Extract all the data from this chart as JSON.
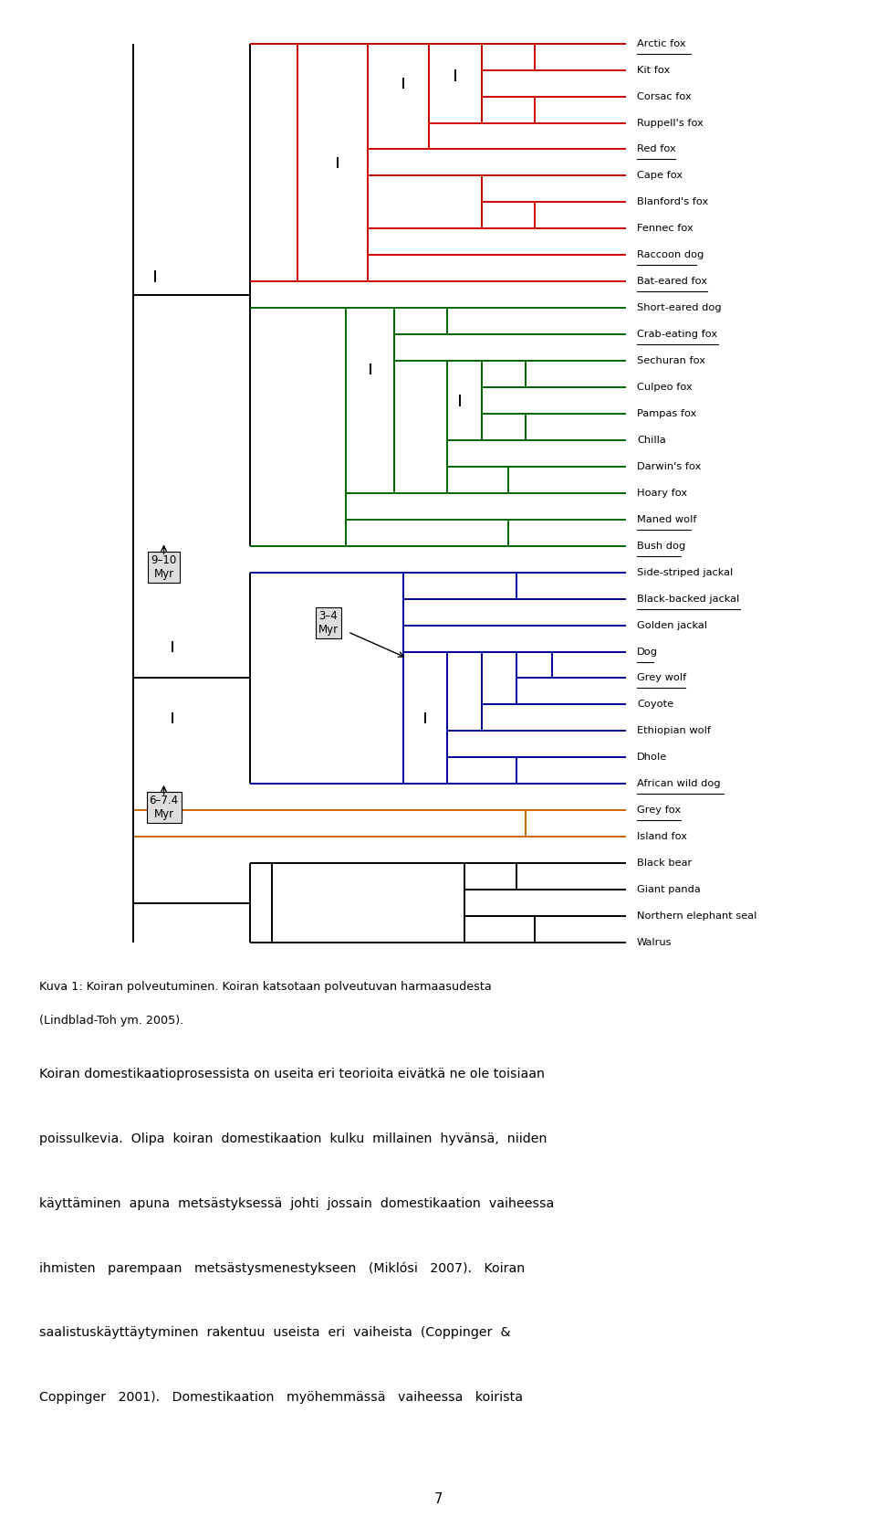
{
  "fig_width": 9.6,
  "fig_height": 16.61,
  "bg_color": "#ffffff",
  "taxa": [
    "Arctic fox",
    "Kit fox",
    "Corsac fox",
    "Ruppell's fox",
    "Red fox",
    "Cape fox",
    "Blanford's fox",
    "Fennec fox",
    "Raccoon dog",
    "Bat-eared fox",
    "Short-eared dog",
    "Crab-eating fox",
    "Sechuran fox",
    "Culpeo fox",
    "Pampas fox",
    "Chilla",
    "Darwin's fox",
    "Hoary fox",
    "Maned wolf",
    "Bush dog",
    "Side-striped jackal",
    "Black-backed jackal",
    "Golden jackal",
    "Dog",
    "Grey wolf",
    "Coyote",
    "Ethiopian wolf",
    "Dhole",
    "African wild dog",
    "Grey fox",
    "Island fox",
    "Black bear",
    "Giant panda",
    "Northern elephant seal",
    "Walrus"
  ],
  "underlined": [
    "Arctic fox",
    "Red fox",
    "Raccoon dog",
    "Bat-eared fox",
    "Crab-eating fox",
    "Maned wolf",
    "Bush dog",
    "Black-backed jackal",
    "Dog",
    "Grey wolf",
    "African wild dog",
    "Grey fox"
  ],
  "red_taxa": [
    "Arctic fox",
    "Kit fox",
    "Corsac fox",
    "Ruppell's fox",
    "Red fox",
    "Cape fox",
    "Blanford's fox",
    "Fennec fox",
    "Raccoon dog",
    "Bat-eared fox"
  ],
  "green_taxa": [
    "Short-eared dog",
    "Crab-eating fox",
    "Sechuran fox",
    "Culpeo fox",
    "Pampas fox",
    "Chilla",
    "Darwin's fox",
    "Hoary fox",
    "Maned wolf",
    "Bush dog"
  ],
  "blue_taxa": [
    "Side-striped jackal",
    "Black-backed jackal",
    "Golden jackal",
    "Dog",
    "Grey wolf",
    "Coyote",
    "Ethiopian wolf",
    "Dhole",
    "African wild dog"
  ],
  "orange_taxa": [
    "Grey fox",
    "Island fox"
  ],
  "black_taxa": [
    "Black bear",
    "Giant panda",
    "Northern elephant seal",
    "Walrus"
  ],
  "red_color": "#cc0000",
  "green_color": "#006600",
  "blue_color": "#000099",
  "orange_color": "#cc6600",
  "black_color": "#000000",
  "caption_line1": "Kuva 1: Koiran polveutuminen. Koiran katsotaan polveutuvan harmaasudesta",
  "caption_line2": "(Lindblad-Toh ym. 2005).",
  "body_lines": [
    "Koiran domestikaatioprosessista on useita eri teorioita eivätkä ne ole toisiaan",
    "poissulkevia.  Olipa  koiran  domestikaation  kulku  millainen  hyvänsä,  niiden",
    "käyttäminen  apuna  metsästyksessä  johti  jossain  domestikaation  vaiheessa",
    "ihmisten   parempaan   metsästysmenestykseen   (Miklósi   2007).   Koiran",
    "saalistuskäyttäytyminen  rakentuu  useista  eri  vaiheista  (Coppinger  &",
    "Coppinger   2001).   Domestikaation   myöhemmässä   vaiheessa   koirista"
  ],
  "page_number": "7"
}
